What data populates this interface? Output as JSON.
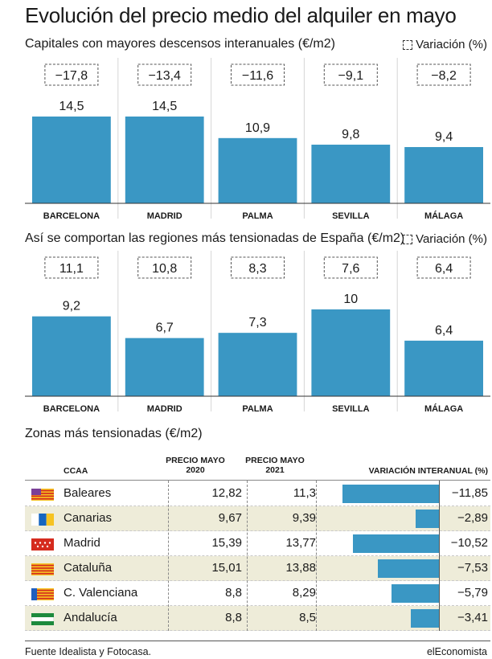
{
  "title": "Evolución del precio  medio del alquiler en mayo",
  "variation_legend": "Variación (%)",
  "bar_color": "#3a97c4",
  "chart_data": [
    {
      "type": "bar",
      "title": "Capitales con mayores descensos interanuales (€/m2)",
      "categories": [
        "BARCELONA",
        "MADRID",
        "PALMA",
        "SEVILLA",
        "MÁLAGA"
      ],
      "values": [
        14.5,
        14.5,
        10.9,
        9.8,
        9.4
      ],
      "value_labels": [
        "14,5",
        "14,5",
        "10,9",
        "9,8",
        "9,4"
      ],
      "variation": [
        -17.8,
        -13.4,
        -11.6,
        -9.1,
        -8.2
      ],
      "variation_labels": [
        "−17,8",
        "−13,4",
        "−11,6",
        "−9,1",
        "−8,2"
      ],
      "ylim": [
        0,
        14.5
      ],
      "grid": false,
      "legend": "top-right"
    },
    {
      "type": "bar",
      "title": "Así se comportan las regiones más tensionadas de España (€/m2)",
      "categories": [
        "BARCELONA",
        "MADRID",
        "PALMA",
        "SEVILLA",
        "MÁLAGA"
      ],
      "values": [
        9.2,
        6.7,
        7.3,
        10,
        6.4
      ],
      "value_labels": [
        "9,2",
        "6,7",
        "7,3",
        "10",
        "6,4"
      ],
      "variation": [
        11.1,
        10.8,
        8.3,
        7.6,
        6.4
      ],
      "variation_labels": [
        "11,1",
        "10,8",
        "8,3",
        "7,6",
        "6,4"
      ],
      "ylim": [
        0,
        10
      ],
      "grid": false,
      "legend": "top-right"
    },
    {
      "type": "table",
      "title": "Zonas más tensionadas (€/m2)",
      "columns": [
        "CCAA",
        "PRECIO MAYO 2020",
        "PRECIO MAYO 2021",
        "VARIACIÓN INTERANUAL (%)"
      ],
      "rows": [
        {
          "name": "Baleares",
          "p2020": "12,82",
          "p2021": "11,3",
          "variation": -11.85,
          "variation_label": "−11,85",
          "flag": "baleares-flag-icon"
        },
        {
          "name": "Canarias",
          "p2020": "9,67",
          "p2021": "9,39",
          "variation": -2.89,
          "variation_label": "−2,89",
          "flag": "canarias-flag-icon"
        },
        {
          "name": "Madrid",
          "p2020": "15,39",
          "p2021": "13,77",
          "variation": -10.52,
          "variation_label": "−10,52",
          "flag": "madrid-flag-icon"
        },
        {
          "name": "Cataluña",
          "p2020": "15,01",
          "p2021": "13,88",
          "variation": -7.53,
          "variation_label": "−7,53",
          "flag": "cataluna-flag-icon"
        },
        {
          "name": "C. Valenciana",
          "p2020": "8,8",
          "p2021": "8,29",
          "variation": -5.79,
          "variation_label": "−5,79",
          "flag": "valenciana-flag-icon"
        },
        {
          "name": "Andalucía",
          "p2020": "8,8",
          "p2021": "8,5",
          "variation": -3.41,
          "variation_label": "−3,41",
          "flag": "andalucia-flag-icon"
        }
      ]
    }
  ],
  "footer": {
    "source": "Fuente Idealista y Fotocasa.",
    "brand": "elEconomista"
  }
}
